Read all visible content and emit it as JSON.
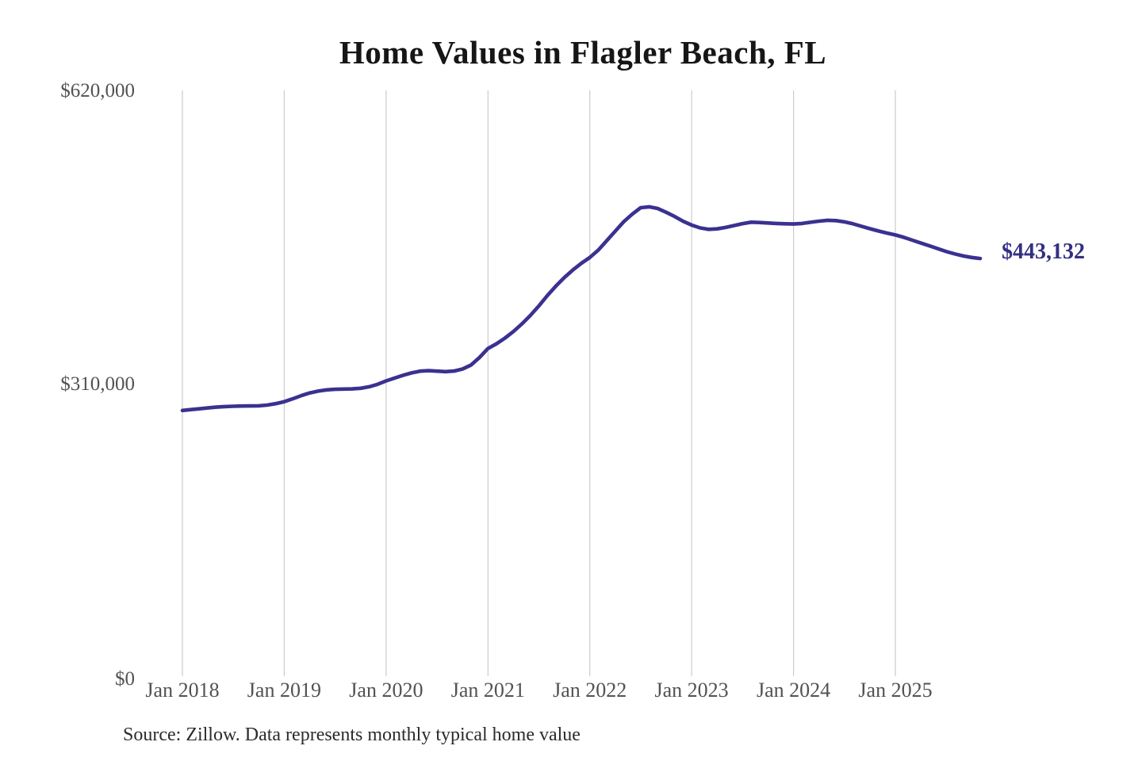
{
  "chart_data": {
    "type": "line",
    "title": "Home Values in Flagler Beach, FL",
    "series_name": "Monthly typical home value",
    "x_start": "2018-01",
    "x_interval": "1 month",
    "x_end": "2025-11",
    "ylim": [
      0,
      620000
    ],
    "grid": "vertical-only",
    "legend": "none",
    "end_label": "$443,132",
    "end_value": 443132,
    "source_note": "Source: Zillow. Data represents monthly typical home value",
    "y_ticks": [
      {
        "value": 0,
        "label": "$0"
      },
      {
        "value": 310000,
        "label": "$310,000"
      },
      {
        "value": 620000,
        "label": "$620,000"
      }
    ],
    "x_ticks": [
      {
        "month_index": 0,
        "label": "Jan 2018"
      },
      {
        "month_index": 12,
        "label": "Jan 2019"
      },
      {
        "month_index": 24,
        "label": "Jan 2020"
      },
      {
        "month_index": 36,
        "label": "Jan 2021"
      },
      {
        "month_index": 48,
        "label": "Jan 2022"
      },
      {
        "month_index": 60,
        "label": "Jan 2023"
      },
      {
        "month_index": 72,
        "label": "Jan 2024"
      },
      {
        "month_index": 84,
        "label": "Jan 2025"
      }
    ],
    "values": [
      282500,
      283400,
      284300,
      285200,
      286000,
      286600,
      287000,
      287200,
      287300,
      287500,
      288200,
      289700,
      291800,
      294800,
      298200,
      301000,
      303000,
      304300,
      304900,
      305100,
      305300,
      306000,
      307600,
      310200,
      313800,
      316800,
      319700,
      322200,
      324100,
      324600,
      324100,
      323600,
      324200,
      326300,
      330500,
      338500,
      348000,
      353000,
      359000,
      366000,
      374000,
      383000,
      393000,
      404000,
      414000,
      423000,
      431000,
      438000,
      444200,
      452000,
      462000,
      472000,
      482000,
      490000,
      496800,
      497800,
      496000,
      492000,
      487500,
      482500,
      478500,
      475500,
      474000,
      474500,
      476000,
      478000,
      480000,
      481500,
      481200,
      480700,
      480200,
      479800,
      479600,
      480200,
      481400,
      482600,
      483500,
      483200,
      481800,
      479800,
      477200,
      474600,
      472200,
      470000,
      468000,
      465500,
      462500,
      459500,
      456500,
      453500,
      450500,
      448000,
      445800,
      444200,
      443132
    ],
    "colors": {
      "line": "#3a3190",
      "end_label": "#332f80",
      "grid": "#cccccc",
      "axis_text": "#525252",
      "title": "#161616",
      "source": "#2b2b2b"
    }
  }
}
